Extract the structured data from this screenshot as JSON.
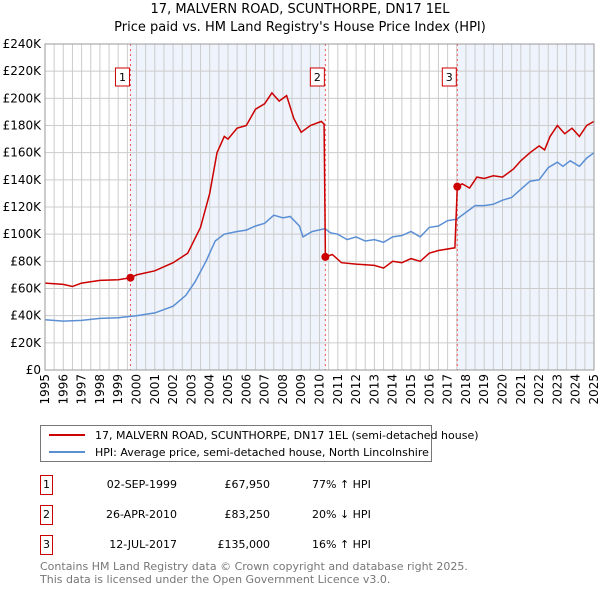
{
  "chart_data": {
    "type": "line",
    "title": "17, MALVERN ROAD, SCUNTHORPE, DN17 1EL",
    "subtitle": "Price paid vs. HM Land Registry's House Price Index (HPI)",
    "xlim": [
      1995,
      2025
    ],
    "ylim": [
      0,
      240000
    ],
    "x_ticks": [
      "1995",
      "1996",
      "1997",
      "1998",
      "1999",
      "2000",
      "2001",
      "2002",
      "2003",
      "2004",
      "2005",
      "2006",
      "2007",
      "2008",
      "2009",
      "2010",
      "2011",
      "2012",
      "2013",
      "2014",
      "2015",
      "2016",
      "2017",
      "2018",
      "2019",
      "2020",
      "2021",
      "2022",
      "2023",
      "2024",
      "2025"
    ],
    "y_ticks": [
      {
        "value": 0,
        "label": "£0"
      },
      {
        "value": 20000,
        "label": "£20K"
      },
      {
        "value": 40000,
        "label": "£40K"
      },
      {
        "value": 60000,
        "label": "£60K"
      },
      {
        "value": 80000,
        "label": "£80K"
      },
      {
        "value": 100000,
        "label": "£100K"
      },
      {
        "value": 120000,
        "label": "£120K"
      },
      {
        "value": 140000,
        "label": "£140K"
      },
      {
        "value": 160000,
        "label": "£160K"
      },
      {
        "value": 180000,
        "label": "£180K"
      },
      {
        "value": 200000,
        "label": "£200K"
      },
      {
        "value": 220000,
        "label": "£220K"
      },
      {
        "value": 240000,
        "label": "£240K"
      }
    ],
    "grid": true,
    "series": [
      {
        "name": "17, MALVERN ROAD, SCUNTHORPE, DN17 1EL (semi-detached house)",
        "color": "#cc0000",
        "points": [
          [
            1995,
            64000
          ],
          [
            1996,
            63000
          ],
          [
            1996.5,
            61500
          ],
          [
            1997,
            64000
          ],
          [
            1998,
            66000
          ],
          [
            1999,
            66500
          ],
          [
            1999.67,
            67950
          ],
          [
            2000,
            70000
          ],
          [
            2001,
            73000
          ],
          [
            2002,
            79000
          ],
          [
            2002.8,
            86000
          ],
          [
            2003.5,
            105000
          ],
          [
            2004,
            130000
          ],
          [
            2004.4,
            160000
          ],
          [
            2004.8,
            172000
          ],
          [
            2005,
            170000
          ],
          [
            2005.5,
            178000
          ],
          [
            2006,
            180000
          ],
          [
            2006.5,
            192000
          ],
          [
            2007,
            196000
          ],
          [
            2007.4,
            204000
          ],
          [
            2007.8,
            198000
          ],
          [
            2008.2,
            202000
          ],
          [
            2008.6,
            185000
          ],
          [
            2009,
            175000
          ],
          [
            2009.5,
            180000
          ],
          [
            2010.1,
            183000
          ],
          [
            2010.25,
            181000
          ],
          [
            2010.32,
            83250
          ],
          [
            2010.7,
            85000
          ],
          [
            2011.2,
            79000
          ],
          [
            2012,
            78000
          ],
          [
            2013,
            77000
          ],
          [
            2013.5,
            75000
          ],
          [
            2014,
            80000
          ],
          [
            2014.5,
            79000
          ],
          [
            2015,
            82000
          ],
          [
            2015.5,
            80000
          ],
          [
            2016,
            86000
          ],
          [
            2016.5,
            88000
          ],
          [
            2017.4,
            90000
          ],
          [
            2017.53,
            135000
          ],
          [
            2017.8,
            137000
          ],
          [
            2018.2,
            134000
          ],
          [
            2018.6,
            142000
          ],
          [
            2019,
            141000
          ],
          [
            2019.5,
            143000
          ],
          [
            2020,
            142000
          ],
          [
            2020.6,
            148000
          ],
          [
            2021,
            154000
          ],
          [
            2021.5,
            160000
          ],
          [
            2022,
            165000
          ],
          [
            2022.3,
            162000
          ],
          [
            2022.6,
            172000
          ],
          [
            2023,
            180000
          ],
          [
            2023.4,
            174000
          ],
          [
            2023.8,
            178000
          ],
          [
            2024.2,
            172000
          ],
          [
            2024.6,
            180000
          ],
          [
            2025,
            183000
          ]
        ]
      },
      {
        "name": "HPI: Average price, semi-detached house, North Lincolnshire",
        "color": "#5b8fd4",
        "points": [
          [
            1995,
            37000
          ],
          [
            1996,
            36000
          ],
          [
            1997,
            36500
          ],
          [
            1998,
            38000
          ],
          [
            1999,
            38500
          ],
          [
            2000,
            40000
          ],
          [
            2001,
            42000
          ],
          [
            2002,
            47000
          ],
          [
            2002.7,
            55000
          ],
          [
            2003.2,
            65000
          ],
          [
            2003.8,
            80000
          ],
          [
            2004.3,
            95000
          ],
          [
            2004.8,
            100000
          ],
          [
            2005.5,
            102000
          ],
          [
            2006,
            103000
          ],
          [
            2006.5,
            106000
          ],
          [
            2007,
            108000
          ],
          [
            2007.5,
            114000
          ],
          [
            2008,
            112000
          ],
          [
            2008.4,
            113000
          ],
          [
            2008.9,
            106000
          ],
          [
            2009.1,
            98000
          ],
          [
            2009.6,
            102000
          ],
          [
            2010.3,
            104000
          ],
          [
            2010.6,
            101000
          ],
          [
            2011,
            100000
          ],
          [
            2011.5,
            96000
          ],
          [
            2012,
            98000
          ],
          [
            2012.5,
            95000
          ],
          [
            2013,
            96000
          ],
          [
            2013.5,
            94000
          ],
          [
            2014,
            98000
          ],
          [
            2014.5,
            99000
          ],
          [
            2015,
            102000
          ],
          [
            2015.5,
            98000
          ],
          [
            2016,
            105000
          ],
          [
            2016.5,
            106000
          ],
          [
            2017,
            110000
          ],
          [
            2017.5,
            111000
          ],
          [
            2018,
            116000
          ],
          [
            2018.5,
            121000
          ],
          [
            2019,
            121000
          ],
          [
            2019.5,
            122000
          ],
          [
            2020,
            125000
          ],
          [
            2020.5,
            127000
          ],
          [
            2021,
            133000
          ],
          [
            2021.5,
            139000
          ],
          [
            2022,
            140000
          ],
          [
            2022.5,
            149000
          ],
          [
            2023,
            153000
          ],
          [
            2023.3,
            150000
          ],
          [
            2023.7,
            154000
          ],
          [
            2024.2,
            150000
          ],
          [
            2024.6,
            156000
          ],
          [
            2025,
            160000
          ]
        ]
      }
    ],
    "sales": [
      {
        "label": "1",
        "x": 1999.67,
        "value": 67950
      },
      {
        "label": "2",
        "x": 2010.32,
        "value": 83250
      },
      {
        "label": "3",
        "x": 2017.53,
        "value": 135000
      }
    ],
    "legend_placement": "below"
  },
  "legend": {
    "property": "17, MALVERN ROAD, SCUNTHORPE, DN17 1EL (semi-detached house)",
    "hpi": "HPI: Average price, semi-detached house, North Lincolnshire"
  },
  "transactions": [
    {
      "num": "1",
      "date": "02-SEP-1999",
      "price": "£67,950",
      "hpi": "77% ↑ HPI"
    },
    {
      "num": "2",
      "date": "26-APR-2010",
      "price": "£83,250",
      "hpi": "20% ↓ HPI"
    },
    {
      "num": "3",
      "date": "12-JUL-2017",
      "price": "£135,000",
      "hpi": "16% ↑ HPI"
    }
  ],
  "footer": {
    "line1": "Contains HM Land Registry data © Crown copyright and database right 2025.",
    "line2": "This data is licensed under the Open Government Licence v3.0."
  }
}
